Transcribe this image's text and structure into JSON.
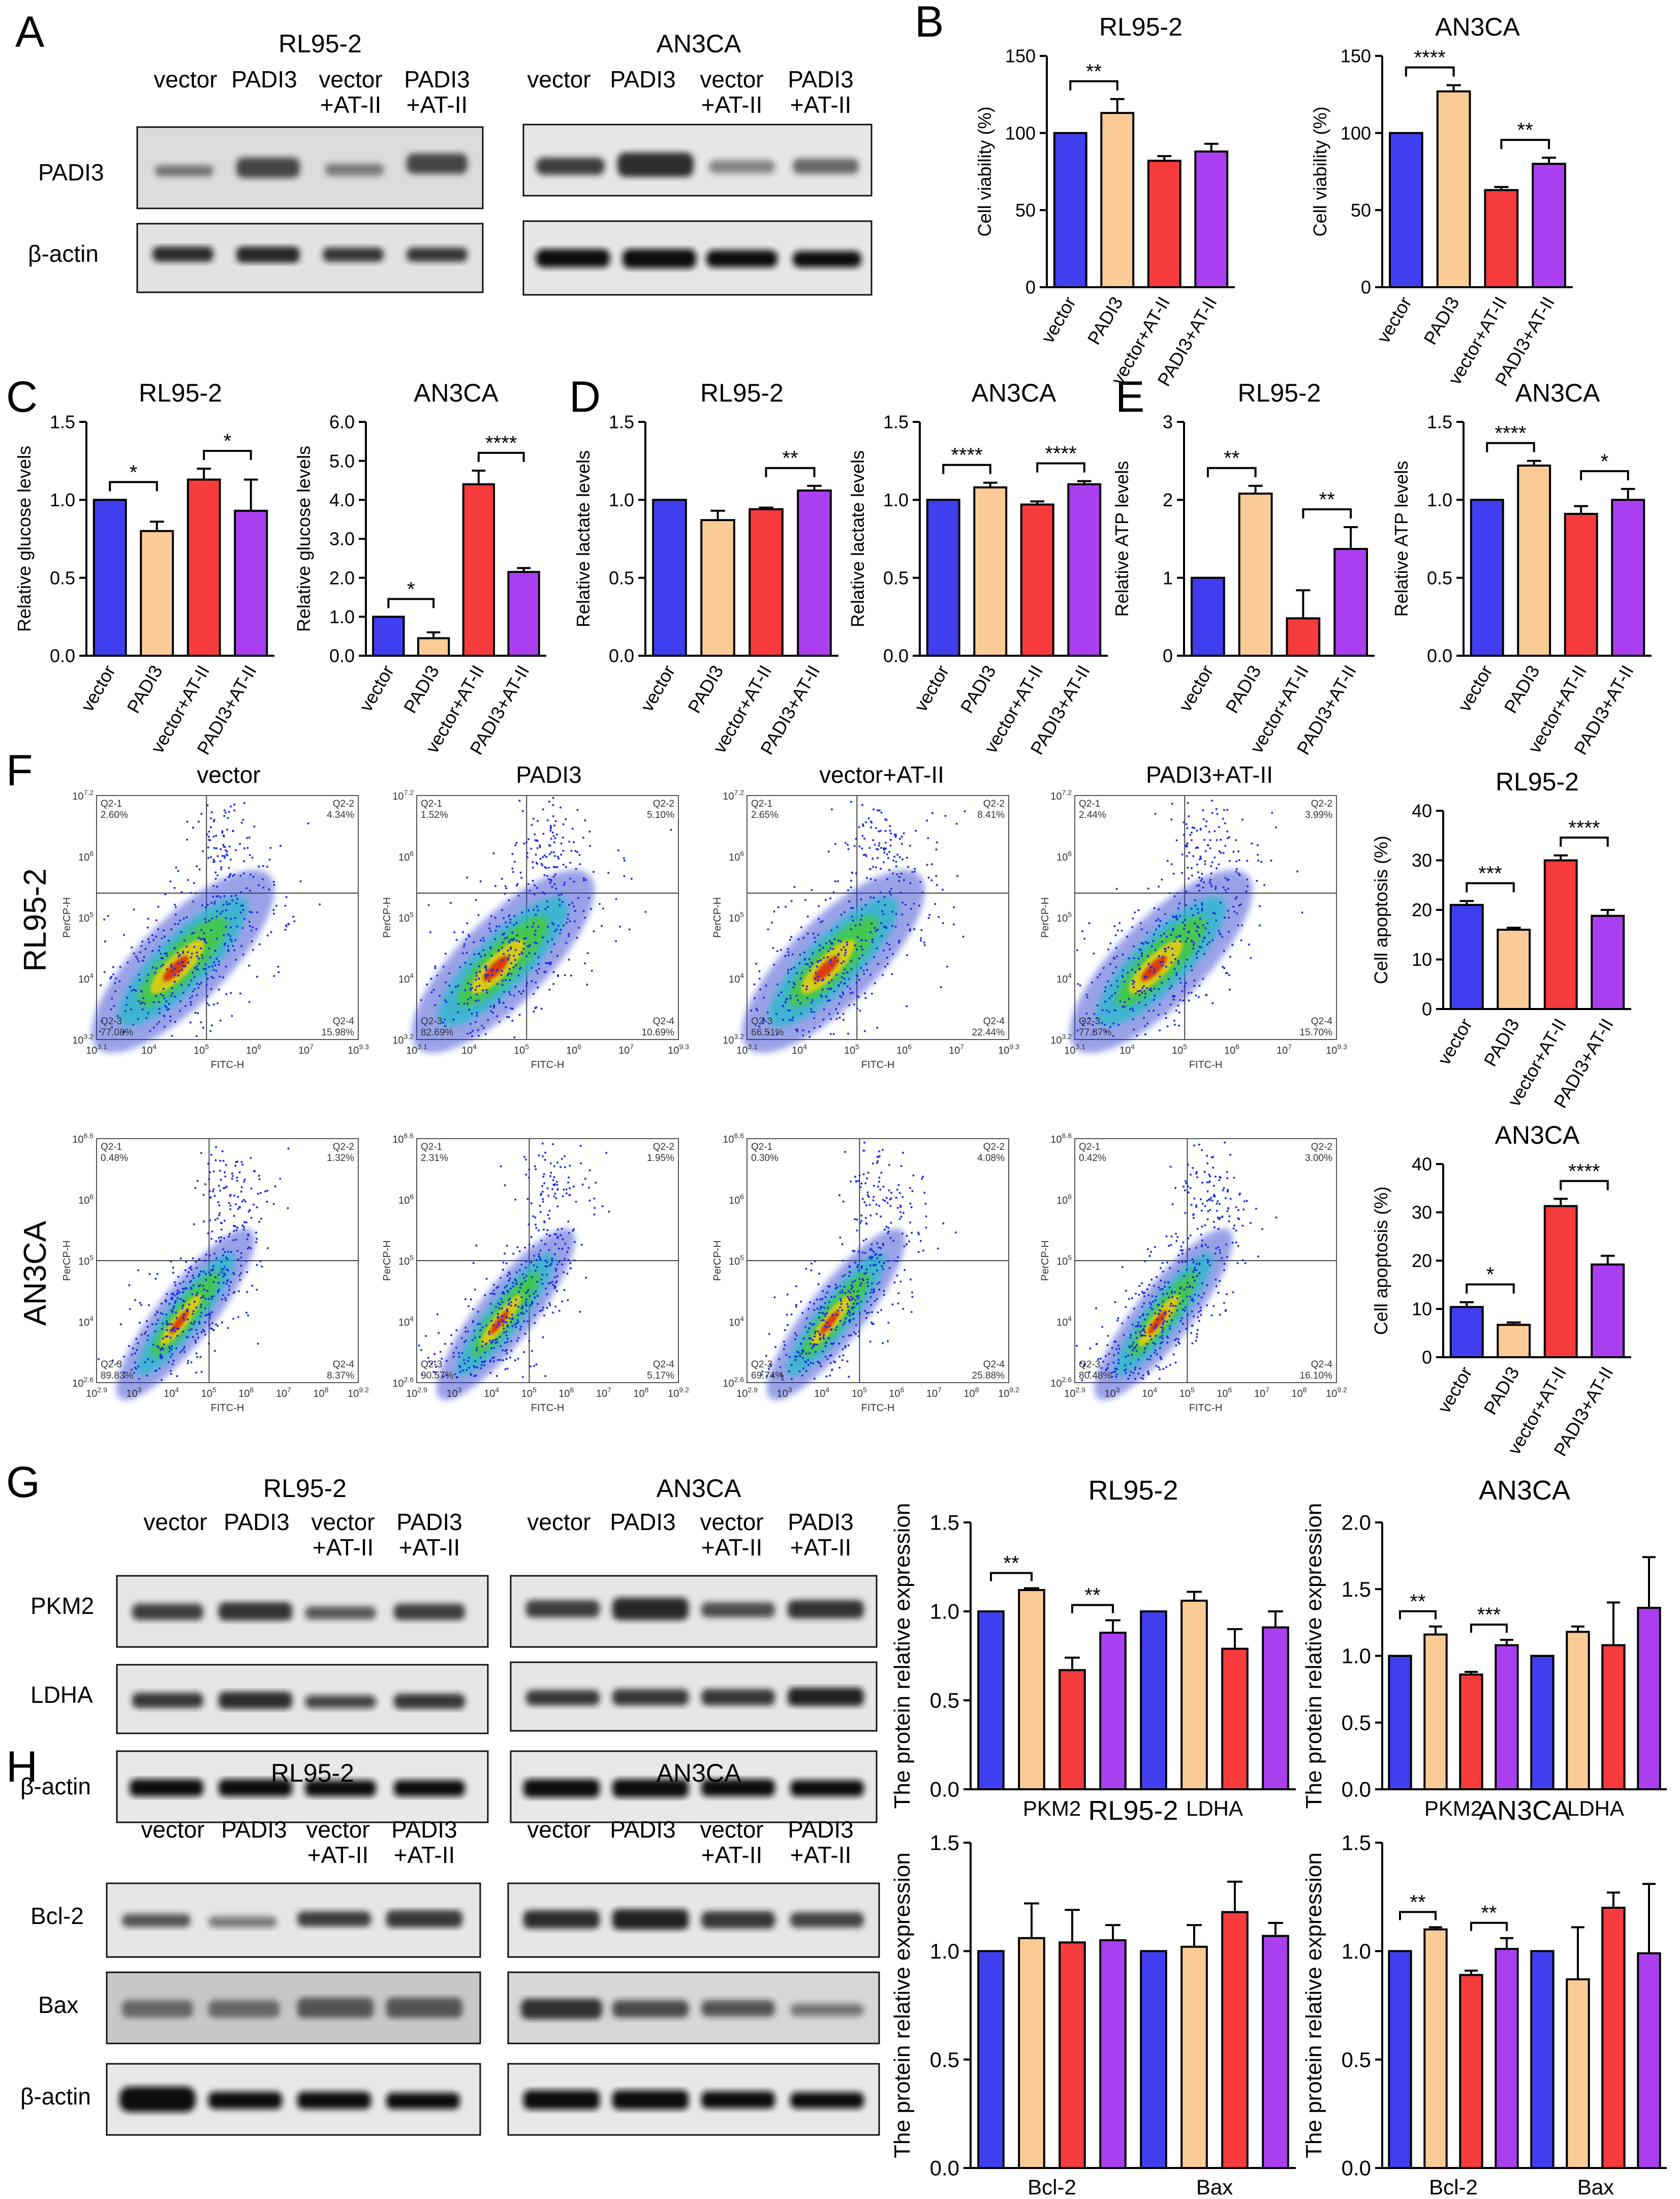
{
  "colors": {
    "vector": "#3f3ff0",
    "padi3": "#fbcb96",
    "vector_at": "#f53b3b",
    "padi3_at": "#ab3ff0"
  },
  "panels": {
    "A": "A",
    "B": "B",
    "C": "C",
    "D": "D",
    "E": "E",
    "F": "F",
    "G": "G",
    "H": "H"
  },
  "groups": [
    "vector",
    "PADI3",
    "vector+AT-II",
    "PADI3+AT-II"
  ],
  "blot_lanes": [
    {
      "l1": "vector",
      "l2": ""
    },
    {
      "l1": "PADI3",
      "l2": ""
    },
    {
      "l1": "vector",
      "l2": "+AT-II"
    },
    {
      "l1": "PADI3",
      "l2": "+AT-II"
    }
  ],
  "blots": {
    "A": {
      "rl_title": "RL95-2",
      "an_title": "AN3CA",
      "rows": [
        "PADI3",
        "β-actin"
      ]
    },
    "G": {
      "rl_title": "RL95-2",
      "an_title": "AN3CA",
      "rows": [
        "PKM2",
        "LDHA",
        "β-actin"
      ]
    },
    "H": {
      "rl_title": "RL95-2",
      "an_title": "AN3CA",
      "rows": [
        "Bcl-2",
        "Bax",
        "β-actin"
      ]
    }
  },
  "flow": {
    "row_labels": [
      "RL95-2",
      "AN3CA"
    ],
    "col_titles": [
      "vector",
      "PADI3",
      "vector+AT-II",
      "PADI3+AT-II"
    ],
    "xlabel": "FITC-H",
    "ylabel": "PerCP-H",
    "plots": [
      {
        "q1": [
          "Q2-1",
          "2.60%"
        ],
        "q2": [
          "Q2-2",
          "4.34%"
        ],
        "q3": [
          "Q2-3",
          "77.08%"
        ],
        "q4": [
          "Q2-4",
          "15.98%"
        ],
        "xt": [
          "10^3.1",
          "10^4",
          "10^5",
          "10^6",
          "10^7",
          "10^9.3"
        ],
        "yt": [
          "10^7.2",
          "10^6",
          "10^5",
          "10^4",
          "10^3.2"
        ]
      },
      {
        "q1": [
          "Q2-1",
          "1.52%"
        ],
        "q2": [
          "Q2-2",
          "5.10%"
        ],
        "q3": [
          "Q2-3",
          "82.69%"
        ],
        "q4": [
          "Q2-4",
          "10.69%"
        ],
        "xt": [
          "10^3.1",
          "10^4",
          "10^5",
          "10^6",
          "10^7",
          "10^9.3"
        ],
        "yt": [
          "10^7.2",
          "10^6",
          "10^5",
          "10^4",
          "10^3.2"
        ]
      },
      {
        "q1": [
          "Q2-1",
          "2.65%"
        ],
        "q2": [
          "Q2-2",
          "8.41%"
        ],
        "q3": [
          "Q2-3",
          "66.51%"
        ],
        "q4": [
          "Q2-4",
          "22.44%"
        ],
        "xt": [
          "10^3.1",
          "10^4",
          "10^5",
          "10^6",
          "10^7",
          "10^9.3"
        ],
        "yt": [
          "10^7.2",
          "10^6",
          "10^5",
          "10^4",
          "10^3.2"
        ]
      },
      {
        "q1": [
          "Q2-1",
          "2.44%"
        ],
        "q2": [
          "Q2-2",
          "3.99%"
        ],
        "q3": [
          "Q2-3",
          "77.87%"
        ],
        "q4": [
          "Q2-4",
          "15.70%"
        ],
        "xt": [
          "10^3.1",
          "10^4",
          "10^5",
          "10^6",
          "10^7",
          "10^9.3"
        ],
        "yt": [
          "10^7.2",
          "10^6",
          "10^5",
          "10^4",
          "10^3.2"
        ]
      },
      {
        "q1": [
          "Q2-1",
          "0.48%"
        ],
        "q2": [
          "Q2-2",
          "1.32%"
        ],
        "q3": [
          "Q2-3",
          "89.83%"
        ],
        "q4": [
          "Q2-4",
          "8.37%"
        ],
        "xt": [
          "10^2.9",
          "10^3",
          "10^4",
          "10^5",
          "10^6",
          "10^7",
          "10^8",
          "10^9.2"
        ],
        "yt": [
          "10^6.6",
          "10^6",
          "10^5",
          "10^4",
          "10^2.6"
        ]
      },
      {
        "q1": [
          "Q2-1",
          "2.31%"
        ],
        "q2": [
          "Q2-2",
          "1.95%"
        ],
        "q3": [
          "Q2-3",
          "90.57%"
        ],
        "q4": [
          "Q2-4",
          "5.17%"
        ],
        "xt": [
          "10^2.9",
          "10^3",
          "10^4",
          "10^5",
          "10^6",
          "10^7",
          "10^8",
          "10^9.2"
        ],
        "yt": [
          "10^6.6",
          "10^6",
          "10^5",
          "10^4",
          "10^2.6"
        ]
      },
      {
        "q1": [
          "Q2-1",
          "0.30%"
        ],
        "q2": [
          "Q2-2",
          "4.08%"
        ],
        "q3": [
          "Q2-3",
          "69.74%"
        ],
        "q4": [
          "Q2-4",
          "25.88%"
        ],
        "xt": [
          "10^2.9",
          "10^3",
          "10^4",
          "10^5",
          "10^6",
          "10^7",
          "10^8",
          "10^9.2"
        ],
        "yt": [
          "10^6.6",
          "10^6",
          "10^5",
          "10^4",
          "10^2.6"
        ]
      },
      {
        "q1": [
          "Q2-1",
          "0.42%"
        ],
        "q2": [
          "Q2-2",
          "3.00%"
        ],
        "q3": [
          "Q2-3",
          "80.48%"
        ],
        "q4": [
          "Q2-4",
          "16.10%"
        ],
        "xt": [
          "10^2.9",
          "10^3",
          "10^4",
          "10^5",
          "10^6",
          "10^7",
          "10^8",
          "10^9.2"
        ],
        "yt": [
          "10^6.6",
          "10^6",
          "10^5",
          "10^4",
          "10^2.6"
        ]
      }
    ]
  },
  "chart_data": [
    {
      "id": "B1",
      "type": "bar",
      "title": "RL95-2",
      "ylabel": "Cell viability (%)",
      "categories": [
        "vector",
        "PADI3",
        "vector+AT-II",
        "PADI3+AT-II"
      ],
      "values": [
        100,
        113,
        82,
        88
      ],
      "errors": [
        0,
        9,
        3,
        5
      ],
      "ylim": [
        0,
        150
      ],
      "yticks": [
        "0",
        "50",
        "100",
        "150"
      ],
      "sig": [
        {
          "a": 0,
          "b": 1,
          "label": "**"
        }
      ]
    },
    {
      "id": "B2",
      "type": "bar",
      "title": "AN3CA",
      "ylabel": "Cell viability (%)",
      "categories": [
        "vector",
        "PADI3",
        "vector+AT-II",
        "PADI3+AT-II"
      ],
      "values": [
        100,
        127,
        63,
        80
      ],
      "errors": [
        0,
        4,
        2,
        4
      ],
      "ylim": [
        0,
        150
      ],
      "yticks": [
        "0",
        "50",
        "100",
        "150"
      ],
      "sig": [
        {
          "a": 0,
          "b": 1,
          "label": "****"
        },
        {
          "a": 2,
          "b": 3,
          "label": "**"
        }
      ]
    },
    {
      "id": "C1",
      "type": "bar",
      "title": "RL95-2",
      "ylabel": "Relative glucose levels",
      "categories": [
        "vector",
        "PADI3",
        "vector+AT-II",
        "PADI3+AT-II"
      ],
      "values": [
        1.0,
        0.8,
        1.13,
        0.93
      ],
      "errors": [
        0,
        0.06,
        0.07,
        0.2
      ],
      "ylim": [
        0,
        1.5
      ],
      "yticks": [
        "0.0",
        "0.5",
        "1.0",
        "1.5"
      ],
      "sig": [
        {
          "a": 0,
          "b": 1,
          "label": "*"
        },
        {
          "a": 2,
          "b": 3,
          "label": "*"
        }
      ]
    },
    {
      "id": "C2",
      "type": "bar",
      "title": "AN3CA",
      "ylabel": "Relative glucose levels",
      "categories": [
        "vector",
        "PADI3",
        "vector+AT-II",
        "PADI3+AT-II"
      ],
      "values": [
        1.0,
        0.45,
        4.4,
        2.15
      ],
      "errors": [
        0,
        0.15,
        0.35,
        0.1
      ],
      "ylim": [
        0,
        6.0
      ],
      "yticks": [
        "0.0",
        "1.0",
        "2.0",
        "3.0",
        "4.0",
        "5.0",
        "6.0"
      ],
      "sig": [
        {
          "a": 0,
          "b": 1,
          "label": "*"
        },
        {
          "a": 2,
          "b": 3,
          "label": "****"
        }
      ]
    },
    {
      "id": "D1",
      "type": "bar",
      "title": "RL95-2",
      "ylabel": "Relative lactate levels",
      "categories": [
        "vector",
        "PADI3",
        "vector+AT-II",
        "PADI3+AT-II"
      ],
      "values": [
        1.0,
        0.87,
        0.94,
        1.06
      ],
      "errors": [
        0,
        0.06,
        0.01,
        0.03
      ],
      "ylim": [
        0,
        1.5
      ],
      "yticks": [
        "0.0",
        "0.5",
        "1.0",
        "1.5"
      ],
      "sig": [
        {
          "a": 2,
          "b": 3,
          "label": "**"
        }
      ]
    },
    {
      "id": "D2",
      "type": "bar",
      "title": "AN3CA",
      "ylabel": "Relative lactate levels",
      "categories": [
        "vector",
        "PADI3",
        "vector+AT-II",
        "PADI3+AT-II"
      ],
      "values": [
        1.0,
        1.08,
        0.97,
        1.1
      ],
      "errors": [
        0,
        0.03,
        0.02,
        0.02
      ],
      "ylim": [
        0,
        1.5
      ],
      "yticks": [
        "0.0",
        "0.5",
        "1.0",
        "1.5"
      ],
      "sig": [
        {
          "a": 0,
          "b": 1,
          "label": "****"
        },
        {
          "a": 2,
          "b": 3,
          "label": "****"
        }
      ]
    },
    {
      "id": "E1",
      "type": "bar",
      "title": "RL95-2",
      "ylabel": "Relative ATP levels",
      "categories": [
        "vector",
        "PADI3",
        "vector+AT-II",
        "PADI3+AT-II"
      ],
      "values": [
        1.0,
        2.08,
        0.48,
        1.37
      ],
      "errors": [
        0,
        0.1,
        0.36,
        0.28
      ],
      "ylim": [
        0,
        3
      ],
      "yticks": [
        "0",
        "1",
        "2",
        "3"
      ],
      "sig": [
        {
          "a": 0,
          "b": 1,
          "label": "**"
        },
        {
          "a": 2,
          "b": 3,
          "label": "**"
        }
      ]
    },
    {
      "id": "E2",
      "type": "bar",
      "title": "AN3CA",
      "ylabel": "Relative ATP levels",
      "categories": [
        "vector",
        "PADI3",
        "vector+AT-II",
        "PADI3+AT-II"
      ],
      "values": [
        1.0,
        1.22,
        0.91,
        1.0
      ],
      "errors": [
        0,
        0.03,
        0.05,
        0.07
      ],
      "ylim": [
        0,
        1.5
      ],
      "yticks": [
        "0.0",
        "0.5",
        "1.0",
        "1.5"
      ],
      "sig": [
        {
          "a": 0,
          "b": 1,
          "label": "****"
        },
        {
          "a": 2,
          "b": 3,
          "label": "*"
        }
      ]
    },
    {
      "id": "F1",
      "type": "bar",
      "title": "RL95-2",
      "ylabel": "Cell apoptosis (%)",
      "categories": [
        "vector",
        "PADI3",
        "vector+AT-II",
        "PADI3+AT-II"
      ],
      "values": [
        21,
        16,
        30,
        18.8
      ],
      "errors": [
        0.8,
        0.4,
        1.0,
        1.2
      ],
      "ylim": [
        0,
        40
      ],
      "yticks": [
        "0",
        "10",
        "20",
        "30",
        "40"
      ],
      "sig": [
        {
          "a": 0,
          "b": 1,
          "label": "***"
        },
        {
          "a": 2,
          "b": 3,
          "label": "****"
        }
      ]
    },
    {
      "id": "F2",
      "type": "bar",
      "title": "AN3CA",
      "ylabel": "Cell apoptosis (%)",
      "categories": [
        "vector",
        "PADI3",
        "vector+AT-II",
        "PADI3+AT-II"
      ],
      "values": [
        10.4,
        6.7,
        31.3,
        19.2
      ],
      "errors": [
        1.0,
        0.5,
        1.5,
        1.8
      ],
      "ylim": [
        0,
        40
      ],
      "yticks": [
        "0",
        "10",
        "20",
        "30",
        "40"
      ],
      "sig": [
        {
          "a": 0,
          "b": 1,
          "label": "*"
        },
        {
          "a": 2,
          "b": 3,
          "label": "****"
        }
      ]
    },
    {
      "id": "G1",
      "type": "grouped-bar",
      "title": "RL95-2",
      "ylabel": "The protein relative expression",
      "categories": [
        "PKM2",
        "LDHA"
      ],
      "series": [
        {
          "name": "vector",
          "values": [
            1.0,
            1.0
          ],
          "errors": [
            0,
            0
          ]
        },
        {
          "name": "PADI3",
          "values": [
            1.12,
            1.06
          ],
          "errors": [
            0.01,
            0.05
          ]
        },
        {
          "name": "vector+AT-II",
          "values": [
            0.67,
            0.79
          ],
          "errors": [
            0.07,
            0.11
          ]
        },
        {
          "name": "PADI3+AT-II",
          "values": [
            0.88,
            0.91
          ],
          "errors": [
            0.07,
            0.09
          ]
        }
      ],
      "ylim": [
        0,
        1.5
      ],
      "yticks": [
        "0.0",
        "0.5",
        "1.0",
        "1.5"
      ],
      "sig": [
        {
          "g": 0,
          "a": 0,
          "b": 1,
          "label": "**"
        },
        {
          "g": 0,
          "a": 2,
          "b": 3,
          "label": "**"
        }
      ]
    },
    {
      "id": "G2",
      "type": "grouped-bar",
      "title": "AN3CA",
      "ylabel": "The protein relative expression",
      "categories": [
        "PKM2",
        "LDHA"
      ],
      "series": [
        {
          "name": "vector",
          "values": [
            1.0,
            1.0
          ],
          "errors": [
            0,
            0
          ]
        },
        {
          "name": "PADI3",
          "values": [
            1.16,
            1.18
          ],
          "errors": [
            0.06,
            0.04
          ]
        },
        {
          "name": "vector+AT-II",
          "values": [
            0.86,
            1.08
          ],
          "errors": [
            0.02,
            0.32
          ]
        },
        {
          "name": "PADI3+AT-II",
          "values": [
            1.08,
            1.36
          ],
          "errors": [
            0.04,
            0.38
          ]
        }
      ],
      "ylim": [
        0,
        2.0
      ],
      "yticks": [
        "0.0",
        "0.5",
        "1.0",
        "1.5",
        "2.0"
      ],
      "sig": [
        {
          "g": 0,
          "a": 0,
          "b": 1,
          "label": "**"
        },
        {
          "g": 0,
          "a": 2,
          "b": 3,
          "label": "***"
        }
      ]
    },
    {
      "id": "H1",
      "type": "grouped-bar",
      "title": "RL95-2",
      "ylabel": "The protein relative expression",
      "categories": [
        "Bcl-2",
        "Bax"
      ],
      "series": [
        {
          "name": "vector",
          "values": [
            1.0,
            1.0
          ],
          "errors": [
            0,
            0
          ]
        },
        {
          "name": "PADI3",
          "values": [
            1.06,
            1.02
          ],
          "errors": [
            0.16,
            0.1
          ]
        },
        {
          "name": "vector+AT-II",
          "values": [
            1.04,
            1.18
          ],
          "errors": [
            0.15,
            0.14
          ]
        },
        {
          "name": "PADI3+AT-II",
          "values": [
            1.05,
            1.07
          ],
          "errors": [
            0.07,
            0.06
          ]
        }
      ],
      "ylim": [
        0,
        1.5
      ],
      "yticks": [
        "0.0",
        "0.5",
        "1.0",
        "1.5"
      ],
      "sig": []
    },
    {
      "id": "H2",
      "type": "grouped-bar",
      "title": "AN3CA",
      "ylabel": "The protein relative expression",
      "categories": [
        "Bcl-2",
        "Bax"
      ],
      "series": [
        {
          "name": "vector",
          "values": [
            1.0,
            1.0
          ],
          "errors": [
            0,
            0
          ]
        },
        {
          "name": "PADI3",
          "values": [
            1.1,
            0.87
          ],
          "errors": [
            0.01,
            0.24
          ]
        },
        {
          "name": "vector+AT-II",
          "values": [
            0.89,
            1.2
          ],
          "errors": [
            0.02,
            0.07
          ]
        },
        {
          "name": "PADI3+AT-II",
          "values": [
            1.01,
            0.99
          ],
          "errors": [
            0.05,
            0.32
          ]
        }
      ],
      "ylim": [
        0,
        1.5
      ],
      "yticks": [
        "0.0",
        "0.5",
        "1.0",
        "1.5"
      ],
      "sig": [
        {
          "g": 0,
          "a": 0,
          "b": 1,
          "label": "**"
        },
        {
          "g": 0,
          "a": 2,
          "b": 3,
          "label": "**"
        }
      ]
    }
  ]
}
